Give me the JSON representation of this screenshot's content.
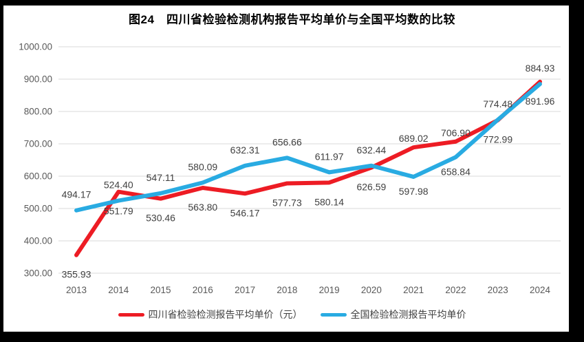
{
  "title": "图24　四川省检验检测机构报告平均单价与全国平均数的比较",
  "colors": {
    "background": "#000000",
    "plot_background": "#ffffff",
    "gridline": "#d9d9d9",
    "tick_text": "#595959",
    "data_label_text": "#404040",
    "series_sichuan": "#ed1c24",
    "series_national": "#29abe2"
  },
  "chart_data": {
    "type": "line",
    "title": "图24　四川省检验检测机构报告平均单价与全国平均数的比较",
    "x": [
      2013,
      2014,
      2015,
      2016,
      2017,
      2018,
      2019,
      2020,
      2021,
      2022,
      2023,
      2024
    ],
    "series": [
      {
        "name": "四川省检验检测报告平均单价（元）",
        "color": "#ed1c24",
        "values": [
          355.93,
          551.79,
          530.46,
          563.8,
          546.17,
          577.73,
          580.14,
          626.59,
          689.02,
          706.9,
          772.99,
          891.96
        ],
        "label_side": [
          "below",
          "below",
          "below",
          "below",
          "below",
          "below",
          "below",
          "below",
          "above",
          "above",
          "below",
          "below"
        ]
      },
      {
        "name": "全国检验检测报告平均单价",
        "color": "#29abe2",
        "values": [
          494.17,
          524.4,
          547.11,
          580.09,
          632.31,
          656.66,
          611.97,
          632.44,
          597.98,
          658.84,
          774.48,
          884.93
        ],
        "label_side": [
          "above",
          "above",
          "above",
          "above",
          "above",
          "above",
          "above",
          "above",
          "below",
          "below",
          "above",
          "above"
        ]
      }
    ],
    "xlabel": "",
    "ylabel": "",
    "ylim": [
      300,
      1000
    ],
    "ytick_step": 100,
    "ytick_format": "two_decimals",
    "grid": true,
    "legend_position": "bottom",
    "data_labels": true
  }
}
